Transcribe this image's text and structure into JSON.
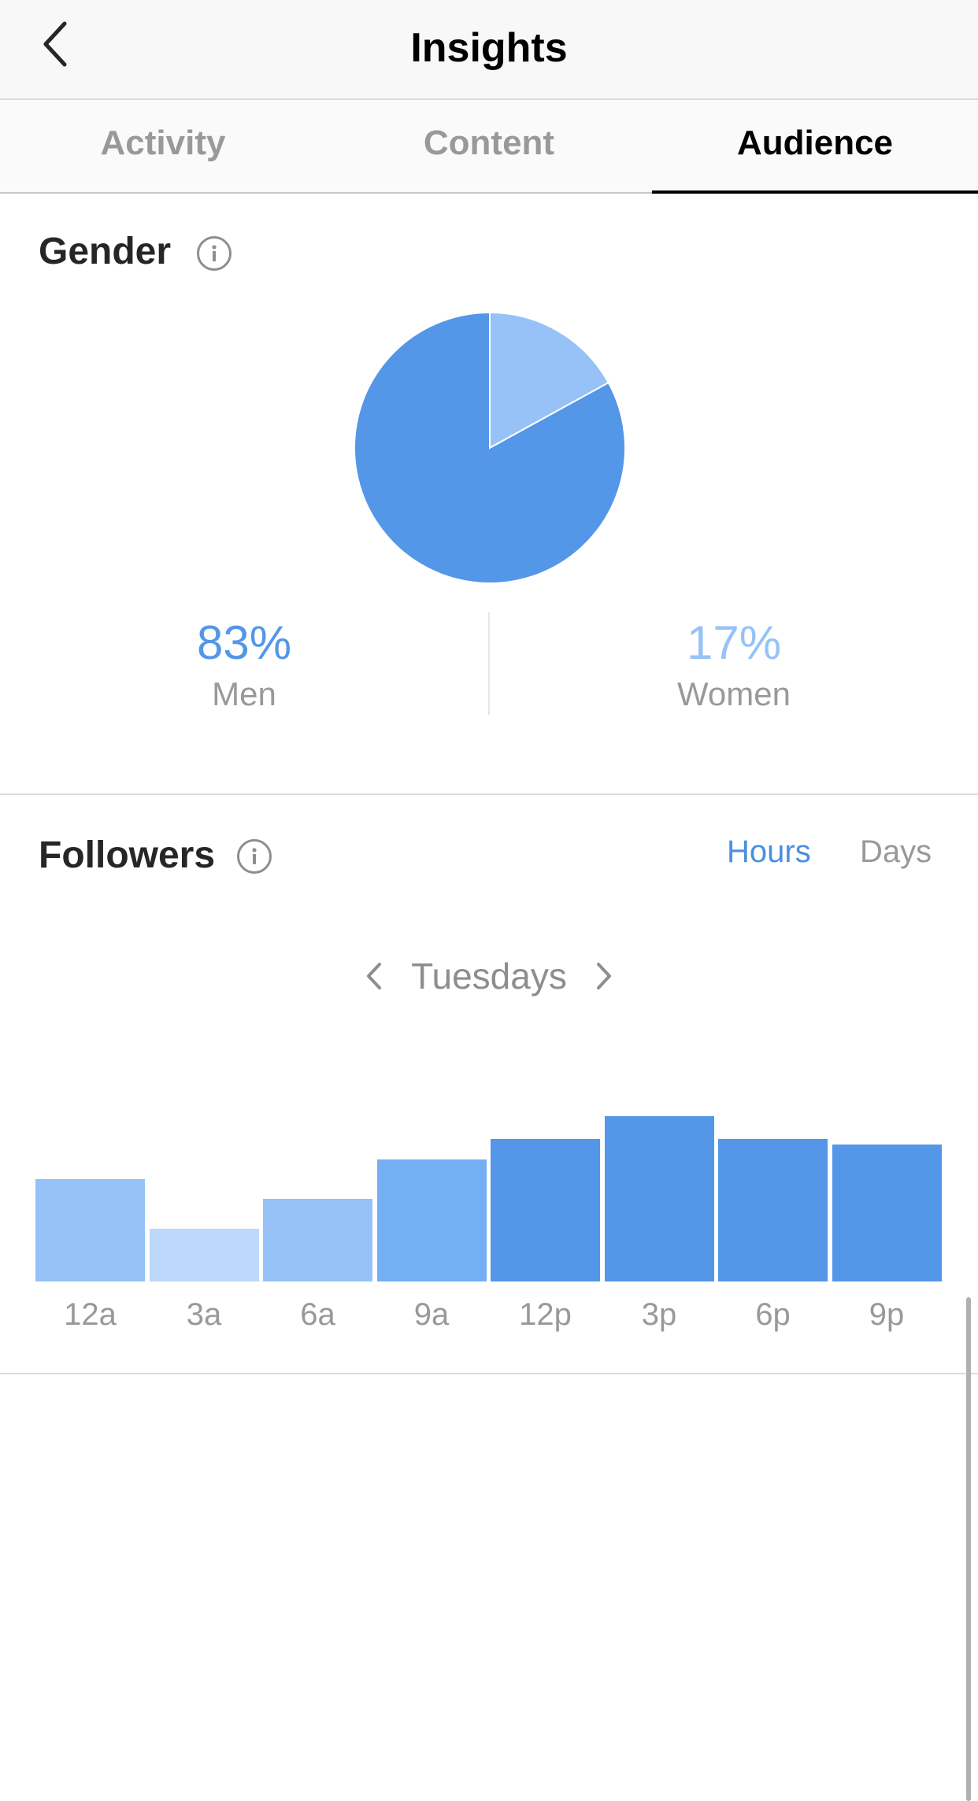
{
  "header": {
    "title": "Insights"
  },
  "tabs": [
    {
      "label": "Activity",
      "active": false
    },
    {
      "label": "Content",
      "active": false
    },
    {
      "label": "Audience",
      "active": true
    }
  ],
  "gender": {
    "title": "Gender",
    "men": {
      "percent": "83%",
      "label": "Men"
    },
    "women": {
      "percent": "17%",
      "label": "Women"
    }
  },
  "followers": {
    "title": "Followers",
    "toggles": {
      "hours": "Hours",
      "days": "Days",
      "selected": "Hours"
    },
    "day": "Tuesdays"
  },
  "colors": {
    "men": "#5496e8",
    "women": "#97c2f8",
    "accent": "#4a90e2"
  },
  "chart_data": [
    {
      "type": "pie",
      "categories": [
        "Men",
        "Women"
      ],
      "values": [
        83,
        17
      ],
      "colors": [
        "#5496e8",
        "#97c2f8"
      ]
    },
    {
      "type": "bar",
      "categories": [
        "12a",
        "3a",
        "6a",
        "9a",
        "12p",
        "3p",
        "6p",
        "9p"
      ],
      "values": [
        62,
        32,
        50,
        74,
        86,
        100,
        86,
        83
      ],
      "ylim": [
        0,
        100
      ],
      "colors": [
        "#97c2f8",
        "#bcd8fb",
        "#97c2f8",
        "#74aff4",
        "#5496e8",
        "#5496e8",
        "#5496e8",
        "#5496e8"
      ]
    }
  ]
}
